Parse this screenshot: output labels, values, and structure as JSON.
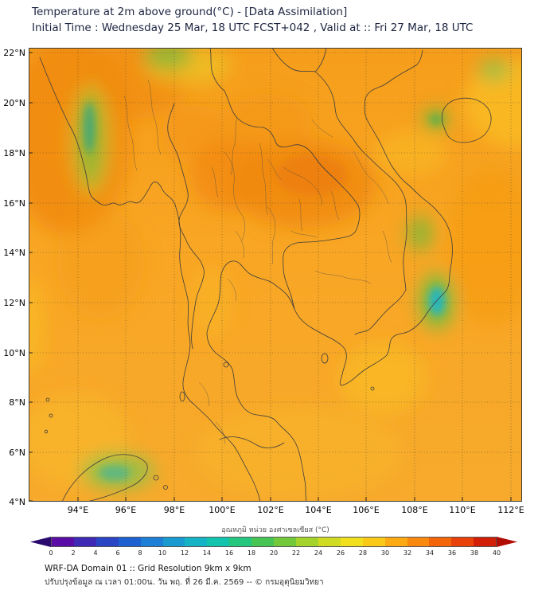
{
  "header": {
    "title": "Temperature at 2m above ground(°C) - [Data Assimilation]",
    "subtitle": "Initial Time : Wednesday 25 Mar, 18 UTC FCST+042 , Valid at :: Fri 27 Mar, 18 UTC"
  },
  "map": {
    "lat_labels": [
      "22°N",
      "20°N",
      "18°N",
      "16°N",
      "14°N",
      "12°N",
      "10°N",
      "8°N",
      "6°N",
      "4°N"
    ],
    "lon_labels": [
      "94°E",
      "96°E",
      "98°E",
      "100°E",
      "102°E",
      "104°E",
      "106°E",
      "108°E",
      "110°E",
      "112°E"
    ],
    "base_color": "#F8A624",
    "warm_patch_color": "#EC7D0C",
    "cool_patch_color": "#7CB83A"
  },
  "colorbar": {
    "label": "อุณหภูมิ หน่วย องศาเซลเซียส (°C)",
    "unit": "°C",
    "min": 0,
    "max": 40,
    "ticks": [
      "0",
      "2",
      "4",
      "6",
      "8",
      "10",
      "12",
      "14",
      "16",
      "18",
      "20",
      "22",
      "24",
      "26",
      "28",
      "30",
      "32",
      "34",
      "36",
      "38",
      "40"
    ],
    "segment_colors": [
      "#5b0ea6",
      "#3f2ab5",
      "#2b46c4",
      "#1e62d2",
      "#1d7fd6",
      "#199bd0",
      "#14b4c6",
      "#12c4ae",
      "#25c77f",
      "#46c454",
      "#74c93a",
      "#a4d32b",
      "#d0dc22",
      "#f2df1d",
      "#fbc918",
      "#fbaa13",
      "#f9880e",
      "#f4650a",
      "#e84109",
      "#d21e06"
    ],
    "left_arrow_color": "#2a0a6e",
    "right_arrow_color": "#b00c04"
  },
  "footer": {
    "line1": "WRF-DA Domain 01 :: Grid Resolution 9km x 9km",
    "line2": "ปรับปรุงข้อมูล ณ เวลา 01:00น. วัน พฤ. ที่ 26 มี.ค. 2569 -- © กรมอุตุนิยมวิทยา"
  }
}
